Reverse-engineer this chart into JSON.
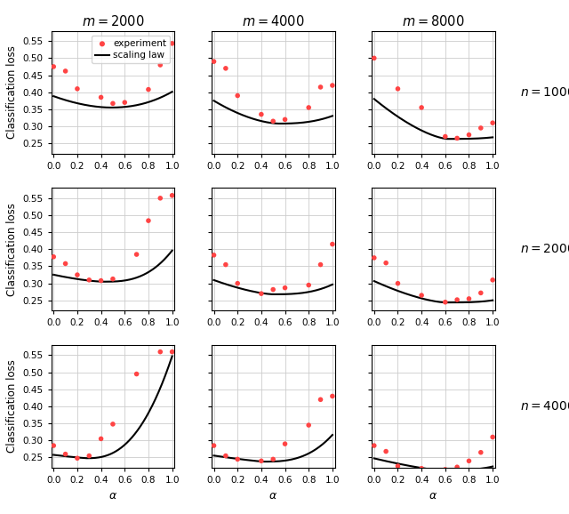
{
  "col_titles": [
    "$m = 2000$",
    "$m = 4000$",
    "$m = 8000$"
  ],
  "row_labels": [
    "$n = 1000$",
    "$n = 2000$",
    "$n = 4000$"
  ],
  "xlabel": "$\\alpha$",
  "ylabel": "Classification loss",
  "legend_experiment": "experiment",
  "legend_scaling": "scaling law",
  "scatter_color": "#FF4444",
  "line_color": "#000000",
  "background_color": "#FFFFFF",
  "grid_color": "#CCCCCC",
  "xlim": [
    -0.02,
    1.02
  ],
  "xticks": [
    0.0,
    0.2,
    0.4,
    0.6,
    0.8,
    1.0
  ],
  "ylim": [
    0.22,
    0.58
  ],
  "yticks": [
    0.25,
    0.3,
    0.35,
    0.4,
    0.45,
    0.5,
    0.55
  ],
  "subplots": [
    {
      "row": 0,
      "col": 0,
      "scatter_x": [
        0.0,
        0.1,
        0.2,
        0.4,
        0.5,
        0.6,
        0.8,
        0.9,
        1.0
      ],
      "scatter_y": [
        0.475,
        0.462,
        0.41,
        0.385,
        0.367,
        0.37,
        0.408,
        0.48,
        0.543
      ],
      "curve": {
        "a": 0.355,
        "b": 0.125,
        "c": 0.195,
        "p": 1.8,
        "q": 2.2,
        "x0": 0.48
      }
    },
    {
      "row": 0,
      "col": 1,
      "scatter_x": [
        0.0,
        0.1,
        0.2,
        0.4,
        0.5,
        0.6,
        0.8,
        0.9,
        1.0
      ],
      "scatter_y": [
        0.49,
        0.47,
        0.39,
        0.335,
        0.315,
        0.32,
        0.355,
        0.415,
        0.42
      ],
      "curve": {
        "a": 0.308,
        "b": 0.185,
        "c": 0.165,
        "p": 1.7,
        "q": 2.5,
        "x0": 0.55
      }
    },
    {
      "row": 0,
      "col": 2,
      "scatter_x": [
        0.0,
        0.2,
        0.4,
        0.6,
        0.7,
        0.8,
        0.9,
        1.0
      ],
      "scatter_y": [
        0.5,
        0.41,
        0.355,
        0.27,
        0.265,
        0.275,
        0.295,
        0.31
      ],
      "curve": {
        "a": 0.263,
        "b": 0.24,
        "c": 0.085,
        "p": 1.5,
        "q": 3.0,
        "x0": 0.62
      }
    },
    {
      "row": 1,
      "col": 0,
      "scatter_x": [
        0.0,
        0.1,
        0.2,
        0.3,
        0.4,
        0.5,
        0.7,
        0.8,
        0.9,
        1.0
      ],
      "scatter_y": [
        0.378,
        0.358,
        0.325,
        0.31,
        0.308,
        0.313,
        0.385,
        0.484,
        0.55,
        0.558
      ],
      "curve": {
        "a": 0.305,
        "b": 0.075,
        "c": 0.42,
        "p": 1.5,
        "q": 2.8,
        "x0": 0.42
      }
    },
    {
      "row": 1,
      "col": 1,
      "scatter_x": [
        0.0,
        0.1,
        0.2,
        0.4,
        0.5,
        0.6,
        0.8,
        0.9,
        1.0
      ],
      "scatter_y": [
        0.383,
        0.355,
        0.3,
        0.27,
        0.282,
        0.287,
        0.295,
        0.355,
        0.415
      ],
      "curve": {
        "a": 0.268,
        "b": 0.118,
        "c": 0.2,
        "p": 1.5,
        "q": 2.8,
        "x0": 0.5
      }
    },
    {
      "row": 1,
      "col": 2,
      "scatter_x": [
        0.0,
        0.1,
        0.2,
        0.4,
        0.6,
        0.7,
        0.8,
        0.9,
        1.0
      ],
      "scatter_y": [
        0.375,
        0.36,
        0.3,
        0.265,
        0.245,
        0.252,
        0.255,
        0.272,
        0.31
      ],
      "curve": {
        "a": 0.244,
        "b": 0.135,
        "c": 0.12,
        "p": 1.5,
        "q": 3.2,
        "x0": 0.6
      }
    },
    {
      "row": 2,
      "col": 0,
      "scatter_x": [
        0.0,
        0.1,
        0.2,
        0.3,
        0.4,
        0.5,
        0.7,
        0.9,
        1.0
      ],
      "scatter_y": [
        0.285,
        0.26,
        0.248,
        0.255,
        0.305,
        0.348,
        0.495,
        0.56,
        0.56
      ],
      "curve": {
        "a": 0.248,
        "b": 0.045,
        "c": 0.68,
        "p": 1.2,
        "q": 2.5,
        "x0": 0.28
      }
    },
    {
      "row": 2,
      "col": 1,
      "scatter_x": [
        0.0,
        0.1,
        0.2,
        0.4,
        0.5,
        0.6,
        0.8,
        0.9,
        1.0
      ],
      "scatter_y": [
        0.285,
        0.255,
        0.245,
        0.24,
        0.245,
        0.29,
        0.345,
        0.42,
        0.43
      ],
      "curve": {
        "a": 0.238,
        "b": 0.05,
        "c": 0.36,
        "p": 1.2,
        "q": 2.8,
        "x0": 0.42
      }
    },
    {
      "row": 2,
      "col": 2,
      "scatter_x": [
        0.0,
        0.1,
        0.2,
        0.4,
        0.6,
        0.7,
        0.8,
        0.9,
        1.0
      ],
      "scatter_y": [
        0.285,
        0.268,
        0.225,
        0.218,
        0.215,
        0.222,
        0.24,
        0.265,
        0.31
      ],
      "curve": {
        "a": 0.213,
        "b": 0.075,
        "c": 0.175,
        "p": 1.3,
        "q": 3.5,
        "x0": 0.55
      }
    }
  ]
}
